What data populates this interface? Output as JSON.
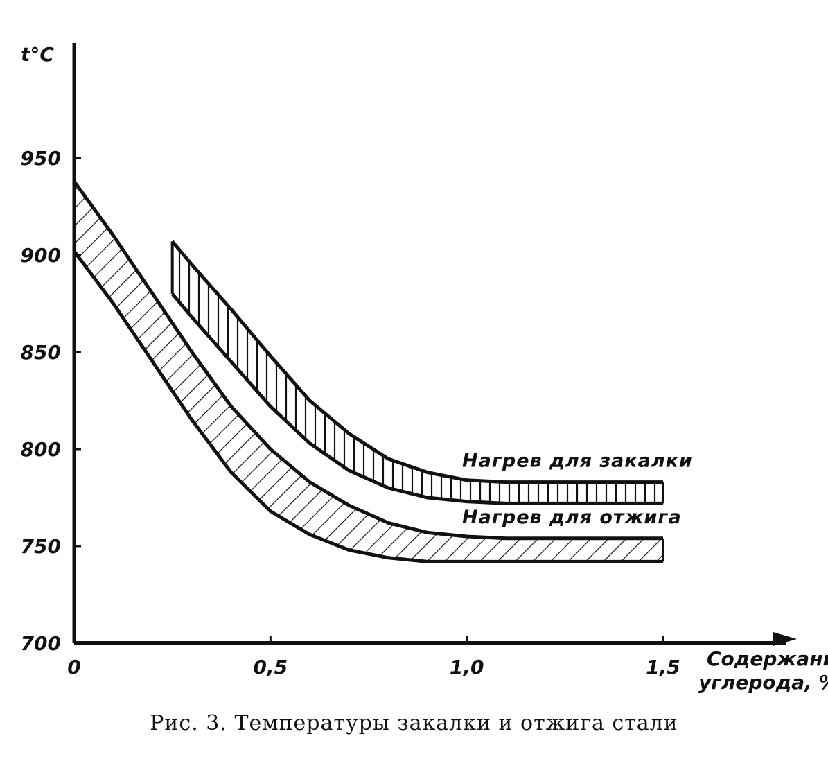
{
  "caption": "Рис. 3. Температуры закалки и отжига стали",
  "chart_data": {
    "type": "area",
    "title": "",
    "ylabel": "t°C",
    "xlabel_line1": "Содержание",
    "xlabel_line2": "углерода, %",
    "xlim": [
      0,
      1.5
    ],
    "ylim": [
      700,
      950
    ],
    "x_ticks": [
      {
        "value": 0,
        "label": "0"
      },
      {
        "value": 0.5,
        "label": "0,5"
      },
      {
        "value": 1.0,
        "label": "1,0"
      },
      {
        "value": 1.5,
        "label": "1,5"
      }
    ],
    "y_ticks": [
      {
        "value": 700,
        "label": "700"
      },
      {
        "value": 750,
        "label": "750"
      },
      {
        "value": 800,
        "label": "800"
      },
      {
        "value": 850,
        "label": "850"
      },
      {
        "value": 900,
        "label": "900"
      },
      {
        "value": 950,
        "label": "950"
      }
    ],
    "grid": false,
    "series": [
      {
        "name": "Нагрев для закалки",
        "hatch": "vertical",
        "x": [
          0.25,
          0.3,
          0.4,
          0.5,
          0.6,
          0.7,
          0.8,
          0.9,
          1.0,
          1.1,
          1.2,
          1.3,
          1.4,
          1.5
        ],
        "upper": [
          907,
          895,
          872,
          848,
          825,
          808,
          795,
          788,
          784,
          783,
          783,
          783,
          783,
          783
        ],
        "lower": [
          880,
          868,
          845,
          822,
          803,
          789,
          780,
          775,
          773,
          772,
          772,
          772,
          772,
          772
        ]
      },
      {
        "name": "Нагрев для отжига",
        "hatch": "diagonal",
        "x": [
          0,
          0.1,
          0.2,
          0.3,
          0.4,
          0.5,
          0.6,
          0.7,
          0.8,
          0.9,
          1.0,
          1.1,
          1.2,
          1.3,
          1.4,
          1.5
        ],
        "upper": [
          938,
          910,
          880,
          850,
          822,
          800,
          783,
          771,
          762,
          757,
          755,
          754,
          754,
          754,
          754,
          754
        ],
        "lower": [
          902,
          875,
          845,
          815,
          788,
          768,
          756,
          748,
          744,
          742,
          742,
          742,
          742,
          742,
          742,
          742
        ]
      }
    ]
  }
}
